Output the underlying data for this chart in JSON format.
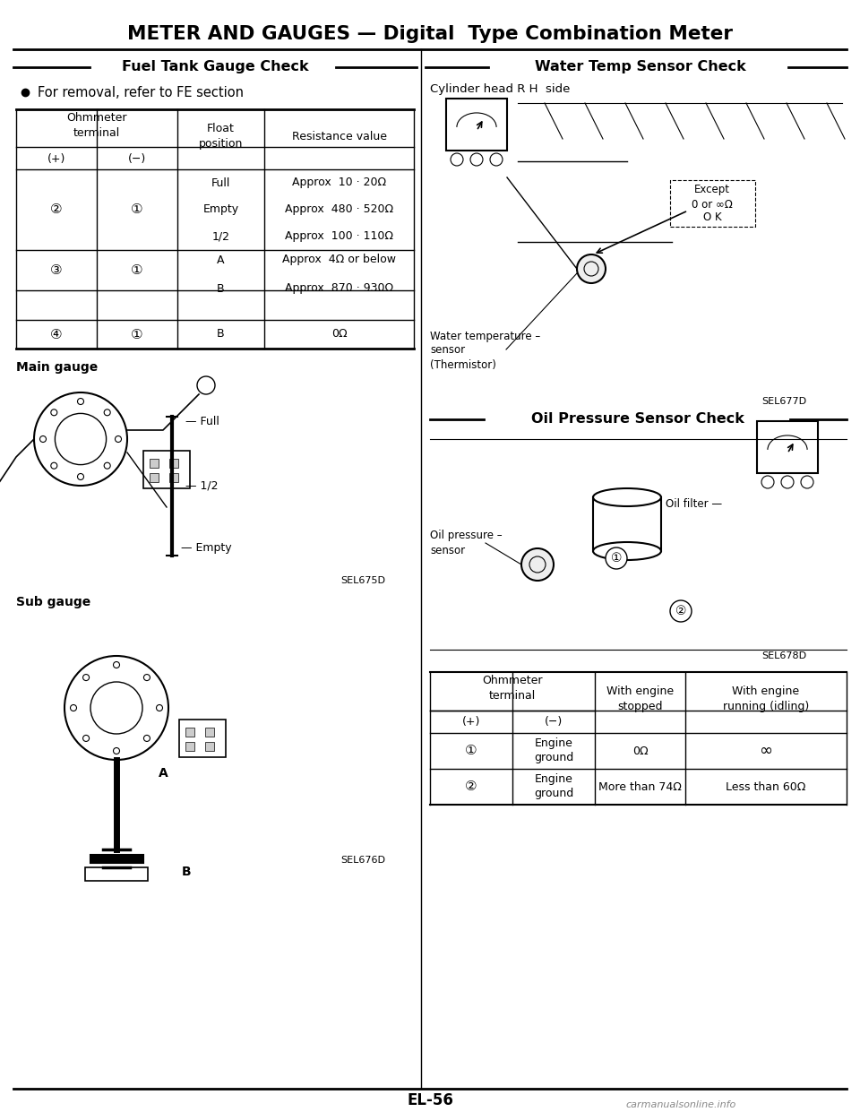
{
  "title": "METER AND GAUGES — Digital  Type Combination Meter",
  "section_left": "Fuel Tank Gauge Check",
  "section_right_top": "Water Temp Sensor Check",
  "section_right_bottom": "Oil Pressure Sensor Check",
  "bullet_text": "For removal, refer to FE section",
  "cylinder_head_label": "Cylinder head R H  side",
  "water_temp_line1": "Water temperature –",
  "water_temp_line2": "sensor",
  "water_temp_line3": "(Thermistor)",
  "except_label": "Except",
  "except_val": "0 or ∞Ω",
  "ok_label": "O K",
  "oil_filter_label": "Oil filter —",
  "oil_pressure_label": "Oil pressure –\nsensor",
  "main_gauge_label": "Main gauge",
  "sub_gauge_label": "Sub gauge",
  "sel675": "SEL675D",
  "sel676": "SEL676D",
  "sel677": "SEL677D",
  "sel678": "SEL678D",
  "page_number": "EL-56",
  "footer": "carmanualsonline.info",
  "table1_rows": [
    [
      "②",
      "①",
      "Full",
      "Approx  10 · 20Ω"
    ],
    [
      "②",
      "①",
      "Empty",
      "Approx  480 · 520Ω"
    ],
    [
      "②",
      "①",
      "1/2",
      "Approx  100 · 110Ω"
    ],
    [
      "③",
      "①",
      "A",
      "Approx  4Ω or below"
    ],
    [
      "③",
      "①",
      "B",
      "Approx  870 · 930Ω"
    ],
    [
      "④",
      "①",
      "B",
      "0Ω"
    ]
  ],
  "table2_rows": [
    [
      "①",
      "Engine\nground",
      "0Ω",
      "∞"
    ],
    [
      "②",
      "Engine\nground",
      "More than 74Ω",
      "Less than 60Ω"
    ]
  ],
  "bg_color": "#ffffff"
}
